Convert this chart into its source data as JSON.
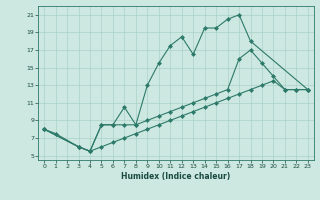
{
  "line1_x": [
    0,
    1,
    3,
    4,
    5,
    6,
    7,
    8,
    9,
    10,
    11,
    12,
    13,
    14,
    15,
    16,
    17,
    18,
    23
  ],
  "line1_y": [
    8,
    7.5,
    6,
    5.5,
    8.5,
    8.5,
    10.5,
    8.5,
    13,
    15.5,
    17.5,
    18.5,
    16.5,
    19.5,
    19.5,
    20.5,
    21,
    18,
    12.5
  ],
  "line2_x": [
    0,
    3,
    4,
    5,
    6,
    7,
    8,
    9,
    10,
    11,
    12,
    13,
    14,
    15,
    16,
    17,
    18,
    19,
    20,
    21,
    22,
    23
  ],
  "line2_y": [
    8,
    6,
    5.5,
    8.5,
    8.5,
    8.5,
    8.5,
    9,
    9.5,
    10,
    10.5,
    11,
    11.5,
    12,
    12.5,
    16,
    17,
    15.5,
    14,
    12.5,
    12.5,
    12.5
  ],
  "line3_x": [
    0,
    3,
    4,
    5,
    6,
    7,
    8,
    9,
    10,
    11,
    12,
    13,
    14,
    15,
    16,
    17,
    18,
    19,
    20,
    21,
    22,
    23
  ],
  "line3_y": [
    8,
    6,
    5.5,
    6,
    6.5,
    7,
    7.5,
    8,
    8.5,
    9,
    9.5,
    10,
    10.5,
    11,
    11.5,
    12,
    12.5,
    13,
    13.5,
    12.5,
    12.5,
    12.5
  ],
  "color": "#2d7a6a",
  "bg_color": "#cce8e0",
  "grid_color": "#aad0c8",
  "xlabel": "Humidex (Indice chaleur)",
  "xlim": [
    -0.5,
    23.5
  ],
  "ylim": [
    4.5,
    22
  ],
  "xticks": [
    0,
    1,
    2,
    3,
    4,
    5,
    6,
    7,
    8,
    9,
    10,
    11,
    12,
    13,
    14,
    15,
    16,
    17,
    18,
    19,
    20,
    21,
    22,
    23
  ],
  "yticks": [
    5,
    7,
    9,
    11,
    13,
    15,
    17,
    19,
    21
  ]
}
